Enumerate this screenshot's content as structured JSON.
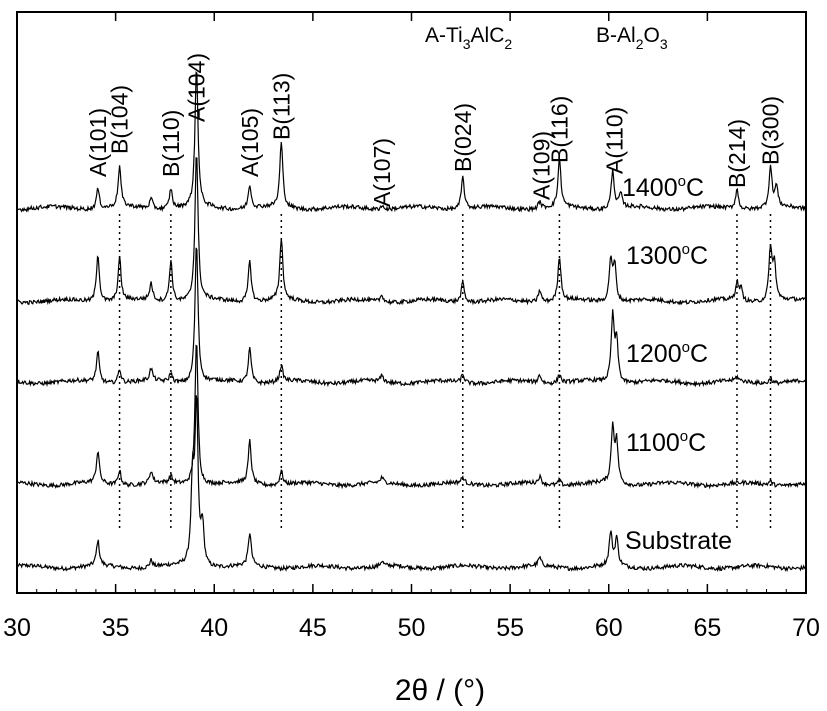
{
  "chart_data": {
    "type": "line",
    "xlabel": "2θ / (°)",
    "ylabel": "",
    "xlim": [
      30,
      70
    ],
    "xticks": [
      30,
      35,
      40,
      45,
      50,
      55,
      60,
      65,
      70
    ],
    "y_ticks_visible": false,
    "grid": false,
    "legend_text": [
      {
        "prefix": "A-Ti",
        "sub1": "3",
        "mid": "AlC",
        "sub2": "2",
        "end": ""
      },
      {
        "prefix": "B-Al",
        "sub1": "2",
        "mid": "O",
        "sub2": "3",
        "end": ""
      }
    ],
    "series": [
      {
        "name": "Substrate",
        "label_text": "Substrate",
        "peaks": [
          [
            34.1,
            25
          ],
          [
            36.8,
            7
          ],
          [
            38.9,
            85
          ],
          [
            39.1,
            160
          ],
          [
            39.4,
            40
          ],
          [
            41.8,
            33
          ],
          [
            48.5,
            5
          ],
          [
            56.5,
            8
          ],
          [
            60.1,
            33
          ],
          [
            60.4,
            28
          ]
        ]
      },
      {
        "name": "1100°C",
        "label_text": "1100",
        "label_sup": "o",
        "label_end": "C",
        "peaks": [
          [
            34.1,
            32
          ],
          [
            35.2,
            15
          ],
          [
            36.8,
            12
          ],
          [
            37.8,
            7
          ],
          [
            39.1,
            145
          ],
          [
            41.8,
            43
          ],
          [
            43.4,
            14
          ],
          [
            48.5,
            5
          ],
          [
            52.6,
            6
          ],
          [
            56.5,
            7
          ],
          [
            57.5,
            5
          ],
          [
            60.2,
            55
          ],
          [
            60.4,
            40
          ],
          [
            68.2,
            4
          ]
        ]
      },
      {
        "name": "1200°C",
        "label_text": "1200",
        "label_sup": "o",
        "label_end": "C",
        "peaks": [
          [
            34.1,
            30
          ],
          [
            35.2,
            14
          ],
          [
            36.8,
            12
          ],
          [
            37.8,
            9
          ],
          [
            39.1,
            140
          ],
          [
            41.8,
            35
          ],
          [
            43.4,
            16
          ],
          [
            48.5,
            6
          ],
          [
            52.6,
            8
          ],
          [
            56.5,
            8
          ],
          [
            57.5,
            9
          ],
          [
            60.2,
            65
          ],
          [
            60.4,
            40
          ],
          [
            66.5,
            4
          ],
          [
            68.2,
            5
          ]
        ]
      },
      {
        "name": "1300°C",
        "label_text": "1300",
        "label_sup": "o",
        "label_end": "C",
        "peaks": [
          [
            34.1,
            48
          ],
          [
            35.2,
            43
          ],
          [
            36.8,
            17
          ],
          [
            37.8,
            42
          ],
          [
            39.1,
            150
          ],
          [
            41.8,
            42
          ],
          [
            43.4,
            62
          ],
          [
            48.5,
            7
          ],
          [
            52.6,
            20
          ],
          [
            56.5,
            12
          ],
          [
            57.5,
            45
          ],
          [
            60.1,
            42
          ],
          [
            60.3,
            36
          ],
          [
            66.5,
            18
          ],
          [
            66.7,
            12
          ],
          [
            68.2,
            53
          ],
          [
            68.4,
            36
          ]
        ]
      },
      {
        "name": "1400°C",
        "label_text": "1400",
        "label_sup": "o",
        "label_end": "C",
        "peaks": [
          [
            34.1,
            20
          ],
          [
            35.2,
            40
          ],
          [
            36.8,
            10
          ],
          [
            37.8,
            20
          ],
          [
            39.1,
            140
          ],
          [
            41.8,
            24
          ],
          [
            43.4,
            65
          ],
          [
            48.5,
            4
          ],
          [
            52.6,
            32
          ],
          [
            56.5,
            7
          ],
          [
            57.5,
            48
          ],
          [
            60.2,
            38
          ],
          [
            60.6,
            14
          ],
          [
            66.5,
            20
          ],
          [
            68.2,
            40
          ],
          [
            68.5,
            20
          ]
        ]
      }
    ],
    "peak_labels": [
      {
        "text": "A(101)",
        "x": 34.1
      },
      {
        "text": "B(104)",
        "x": 35.2
      },
      {
        "text": "B(110)",
        "x": 37.8
      },
      {
        "text": "A(104)",
        "x": 39.1
      },
      {
        "text": "A(105)",
        "x": 41.8
      },
      {
        "text": "B(113)",
        "x": 43.4
      },
      {
        "text": "A(107)",
        "x": 48.5
      },
      {
        "text": "B(024)",
        "x": 52.6
      },
      {
        "text": "A(109)",
        "x": 56.6
      },
      {
        "text": "B(116)",
        "x": 57.5
      },
      {
        "text": "A(110)",
        "x": 60.3
      },
      {
        "text": "B(214)",
        "x": 66.5
      },
      {
        "text": "B(300)",
        "x": 68.2
      }
    ],
    "reference_lines_x": [
      35.2,
      37.8,
      43.4,
      52.6,
      57.5,
      66.5,
      68.2
    ]
  }
}
